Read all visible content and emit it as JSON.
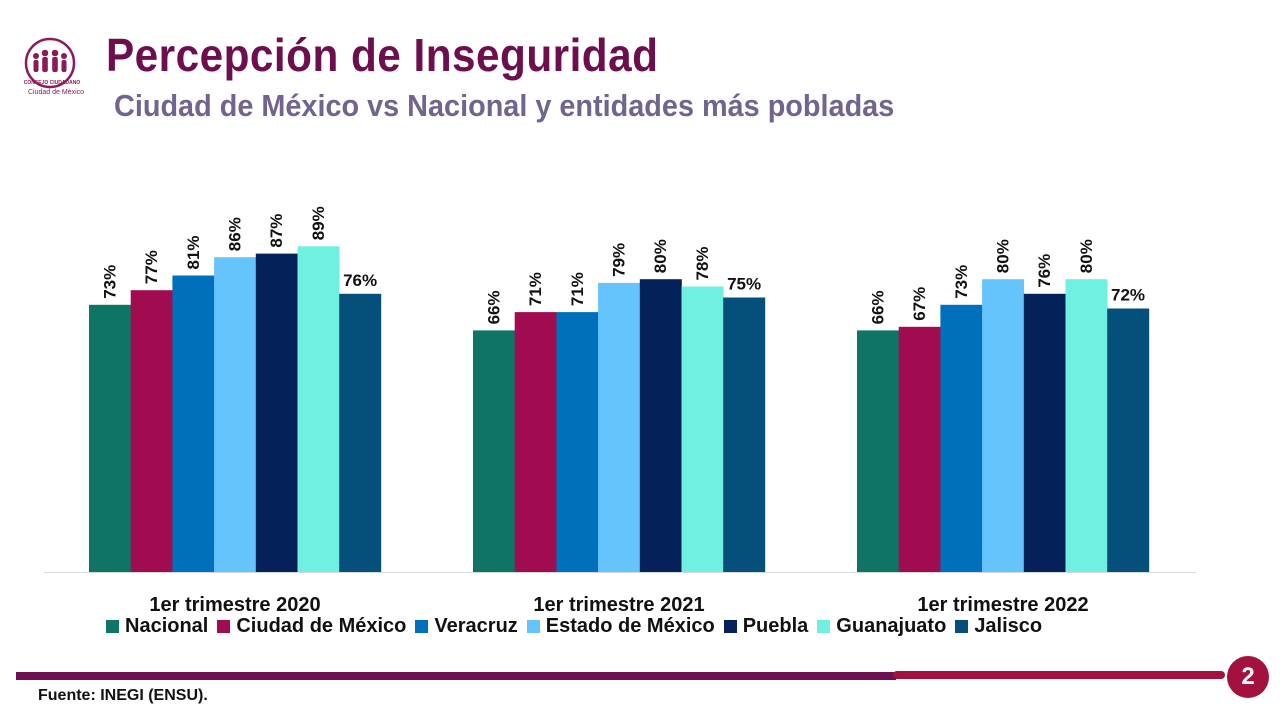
{
  "header": {
    "title": "Percepción de Inseguridad",
    "subtitle": "Ciudad de México vs Nacional y entidades más pobladas"
  },
  "logo": {
    "line1": "CONSEJO CIUDADANO",
    "line2": "Ciudad de México",
    "color": "#8a1a5a"
  },
  "chart_data": {
    "type": "bar",
    "categories": [
      "1er trimestre 2020",
      "1er trimestre 2021",
      "1er trimestre 2022"
    ],
    "series": [
      {
        "name": "Nacional",
        "color": "#0e7565",
        "values": [
          73,
          66,
          66
        ],
        "labels": [
          "73%",
          "66%",
          "66%"
        ]
      },
      {
        "name": "Ciudad de México",
        "color": "#a00c4f",
        "values": [
          77,
          71,
          67
        ],
        "labels": [
          "77%",
          "71%",
          "67%"
        ]
      },
      {
        "name": "Veracruz",
        "color": "#0070bc",
        "values": [
          81,
          71,
          73
        ],
        "labels": [
          "81%",
          "71%",
          "73%"
        ]
      },
      {
        "name": "Estado de México",
        "color": "#65c4fb",
        "values": [
          86,
          79,
          80
        ],
        "labels": [
          "86%",
          "79%",
          "80%"
        ]
      },
      {
        "name": "Puebla",
        "color": "#05215a",
        "values": [
          87,
          80,
          76
        ],
        "labels": [
          "87%",
          "80%",
          "76%"
        ]
      },
      {
        "name": "Guanajuato",
        "color": "#70f0e0",
        "values": [
          89,
          78,
          80
        ],
        "labels": [
          "89%",
          "78%",
          "80%"
        ]
      },
      {
        "name": "Jalisco",
        "color": "#04507a",
        "values": [
          76,
          75,
          72
        ],
        "labels": [
          "76%",
          "75%",
          "72%"
        ]
      }
    ],
    "ylim": [
      0,
      100
    ],
    "grid": false,
    "legend": "bottom"
  },
  "footer": {
    "source": "Fuente: INEGI (ENSU).",
    "page_number": "2"
  }
}
